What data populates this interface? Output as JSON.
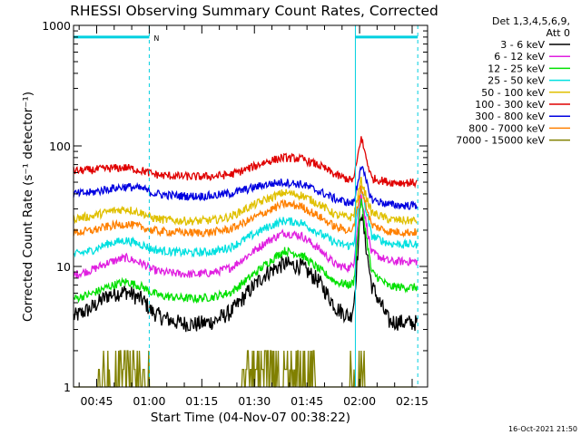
{
  "chart_data": {
    "type": "line",
    "title": "RHESSI Observing Summary Count Rates, Corrected",
    "xlabel": "Start Time (04-Nov-07 00:38:22)",
    "ylabel": "Corrected Count Rate (s⁻¹ detector⁻¹)",
    "yscale": "log",
    "ylim": [
      1,
      1000
    ],
    "xlim_minutes_after_0038": [
      0,
      101
    ],
    "x_tick_labels": [
      "00:45",
      "01:00",
      "01:15",
      "01:30",
      "01:45",
      "02:00",
      "02:15"
    ],
    "x_tick_minutes": [
      6.6,
      21.6,
      36.6,
      51.6,
      66.6,
      81.6,
      96.6
    ],
    "y_tick_labels": [
      "1",
      "10",
      "100",
      "1000"
    ],
    "y_tick_values": [
      1,
      10,
      100,
      1000
    ],
    "legend_header": [
      "Det 1,3,4,5,6,9,",
      "Att 0"
    ],
    "legend_position": "right",
    "flag_marks": {
      "night_intervals_minutes": [
        [
          0,
          21.6
        ],
        [
          80.4,
          98.2
        ]
      ],
      "label": "N"
    },
    "x_minutes": [
      0,
      5,
      10,
      15,
      20,
      22,
      25,
      30,
      35,
      40,
      45,
      50,
      55,
      60,
      65,
      70,
      75,
      79,
      80,
      82,
      85,
      90,
      95,
      98
    ],
    "series": [
      {
        "name": "3 - 6 keV",
        "color": "#000000",
        "values": [
          3.8,
          4.5,
          5.8,
          6.2,
          5.2,
          4.3,
          3.8,
          3.4,
          3.3,
          3.5,
          4.2,
          6.2,
          8.8,
          10.5,
          10,
          7.5,
          4.5,
          3.8,
          5,
          30,
          7,
          3.5,
          3.4,
          3.4
        ]
      },
      {
        "name": "6 - 12 keV",
        "color": "#e020e0",
        "values": [
          8.5,
          9.3,
          10.8,
          11.8,
          10.5,
          9.5,
          9,
          8.7,
          8.6,
          8.9,
          9.8,
          12.5,
          16,
          19,
          18,
          14,
          10.2,
          9.7,
          11,
          40,
          13,
          11,
          11,
          11
        ]
      },
      {
        "name": "12 - 25 keV",
        "color": "#00e000",
        "values": [
          5.4,
          5.9,
          6.8,
          7.5,
          6.7,
          6.1,
          5.7,
          5.5,
          5.4,
          5.6,
          6.1,
          8,
          10.5,
          13.5,
          12.5,
          9.5,
          7.4,
          7,
          7.5,
          36,
          9,
          6.8,
          6.7,
          6.7
        ]
      },
      {
        "name": "25 - 50 keV",
        "color": "#00e0e0",
        "values": [
          12.5,
          13.5,
          15.5,
          16.5,
          15,
          14,
          13.5,
          13.1,
          13,
          13.3,
          14.5,
          17.5,
          21,
          24,
          23,
          19,
          15.5,
          14.8,
          16,
          46,
          18,
          15.5,
          15.2,
          15.2
        ]
      },
      {
        "name": "50 - 100 keV",
        "color": "#e0c000",
        "values": [
          25,
          26,
          28.5,
          30,
          27.5,
          25.5,
          24.5,
          24,
          23.8,
          24.2,
          26,
          31,
          36,
          41,
          39,
          33,
          26.5,
          25.5,
          27,
          52,
          28,
          24.5,
          24,
          24
        ]
      },
      {
        "name": "100 - 300 keV",
        "color": "#e00000",
        "values": [
          62,
          63,
          65,
          66,
          62,
          59,
          57,
          56,
          55.5,
          56,
          58,
          65,
          74,
          80,
          78,
          69,
          57,
          52,
          53,
          118,
          54,
          50,
          49.5,
          49.5
        ]
      },
      {
        "name": "300 - 800 keV",
        "color": "#0000e0",
        "values": [
          40,
          41,
          44,
          46,
          44,
          41,
          39.5,
          38.5,
          38.2,
          38.6,
          40.5,
          44,
          48,
          50,
          48,
          42,
          36,
          33.5,
          34,
          70,
          36,
          32.5,
          32,
          32
        ]
      },
      {
        "name": "800 - 7000 keV",
        "color": "#ff8000",
        "values": [
          19,
          19.8,
          21.5,
          22.5,
          21,
          20,
          19.5,
          19.2,
          19,
          19.3,
          20.5,
          24,
          28.5,
          33,
          31.5,
          26,
          21,
          20,
          21,
          46,
          22,
          19.5,
          19.2,
          19.2
        ]
      },
      {
        "name": "7000 - 15000 keV",
        "color": "#808000",
        "values": [
          1,
          1,
          1.4,
          1.4,
          1.2,
          1,
          1,
          1,
          1,
          1,
          1,
          1,
          2,
          2,
          1.8,
          1,
          1,
          1,
          2.4,
          2.9,
          1,
          1,
          1,
          1
        ]
      }
    ]
  },
  "timestamp": "16-Oct-2021 21:50"
}
